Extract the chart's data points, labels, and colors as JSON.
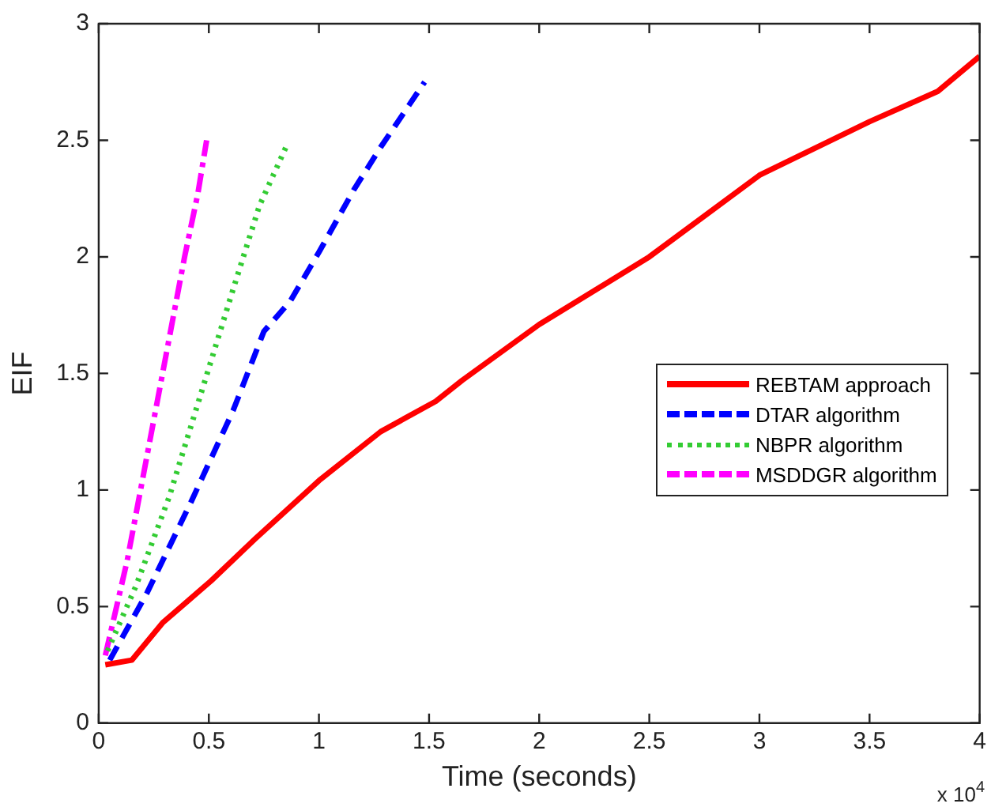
{
  "chart_data": {
    "type": "line",
    "xlabel": "Time (seconds)",
    "ylabel": "EIF",
    "annotations": [
      "x 10$^{4}$"
    ],
    "xlim": [
      0,
      4
    ],
    "xticks": [
      0,
      0.5,
      1,
      1.5,
      2,
      2.5,
      3,
      3.5,
      4
    ],
    "ylim": [
      0,
      3
    ],
    "yticks": [
      0,
      0.5,
      1,
      1.5,
      2,
      2.5,
      3
    ],
    "grid": false,
    "legend": "right",
    "marker": "none",
    "series": [
      {
        "name": "REBTAM approach",
        "color": "#ff0000",
        "line_style": "solid",
        "x": [
          0.03,
          0.15,
          0.29,
          0.51,
          0.71,
          1.0,
          1.28,
          1.53,
          1.65,
          2.0,
          2.5,
          3.0,
          3.5,
          3.81,
          4.0
        ],
        "values": [
          0.25,
          0.27,
          0.43,
          0.61,
          0.79,
          1.04,
          1.25,
          1.38,
          1.47,
          1.71,
          2.0,
          2.35,
          2.58,
          2.71,
          2.86
        ]
      },
      {
        "name": "DTAR algorithm",
        "color": "#0000ff",
        "line_style": "dashed",
        "x": [
          0.05,
          0.22,
          0.42,
          0.61,
          0.75,
          0.87,
          1.0,
          1.16,
          1.28,
          1.48
        ],
        "values": [
          0.27,
          0.56,
          0.95,
          1.34,
          1.68,
          1.81,
          2.02,
          2.29,
          2.47,
          2.75
        ]
      },
      {
        "name": "NBPR algorithm",
        "color": "#33cc33",
        "line_style": "dotted",
        "x": [
          0.04,
          0.17,
          0.32,
          0.46,
          0.61,
          0.73,
          0.85
        ],
        "values": [
          0.31,
          0.59,
          0.97,
          1.4,
          1.86,
          2.22,
          2.47
        ]
      },
      {
        "name": "MSDDGR algorithm",
        "color": "#ff00ff",
        "line_style": "dashdot",
        "x": [
          0.03,
          0.13,
          0.22,
          0.32,
          0.39,
          0.45,
          0.49
        ],
        "values": [
          0.29,
          0.7,
          1.15,
          1.65,
          2.0,
          2.27,
          2.5
        ]
      }
    ]
  }
}
